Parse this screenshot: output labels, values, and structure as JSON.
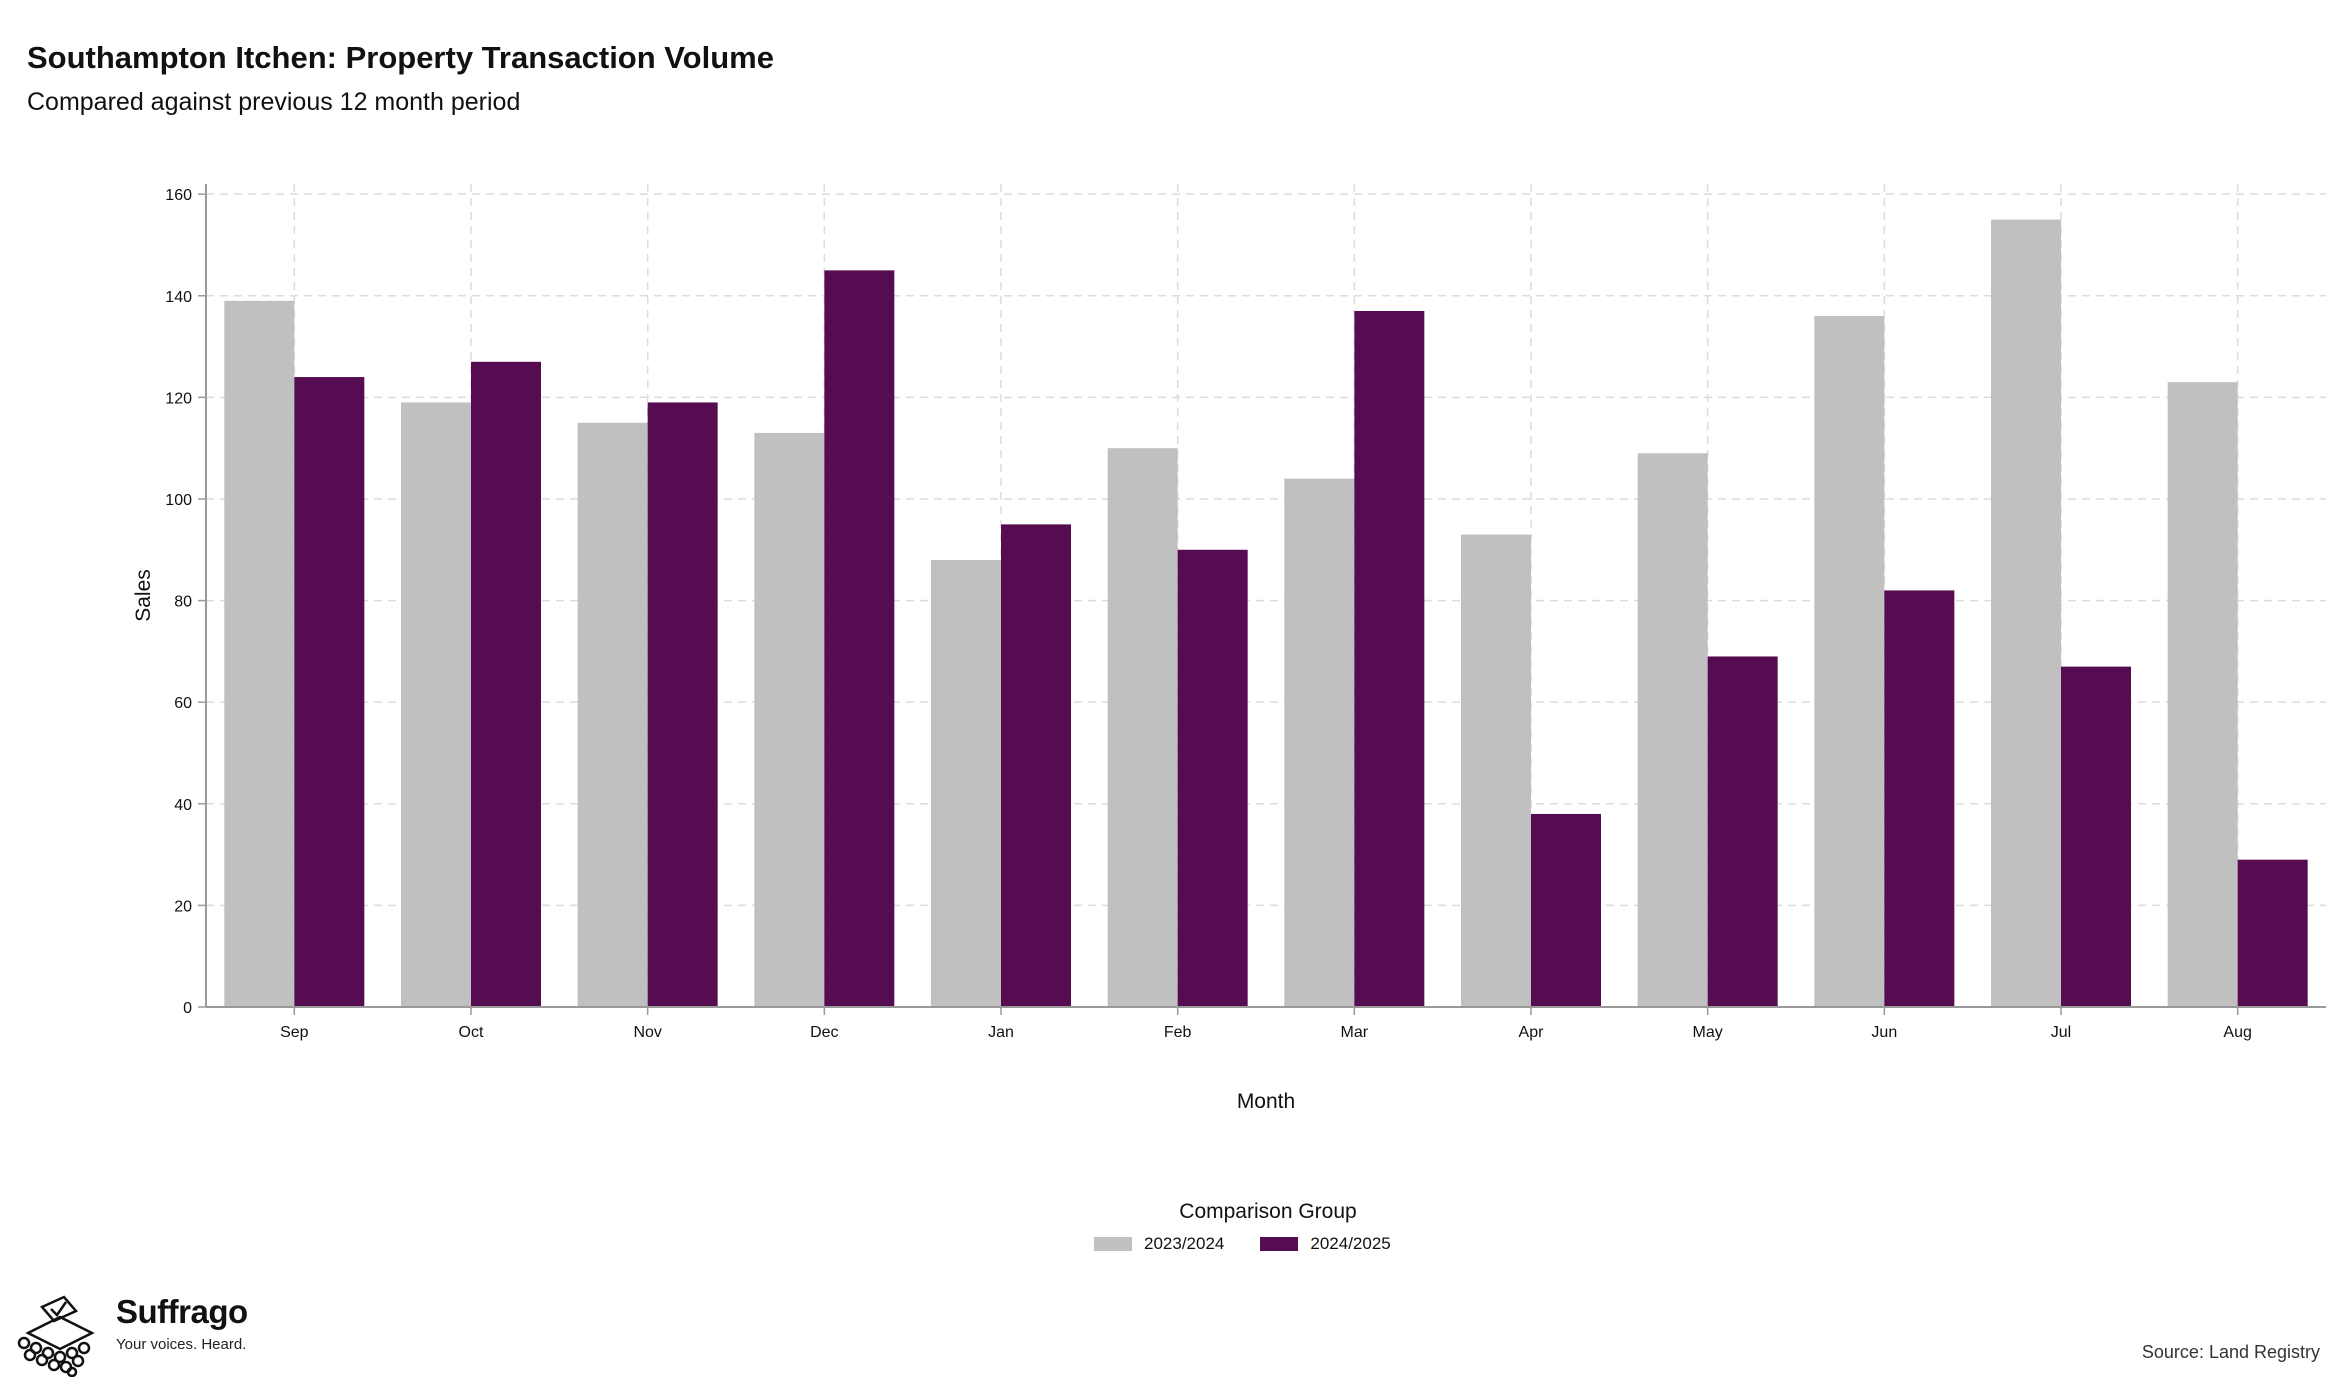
{
  "title": "Southampton Itchen: Property Transaction Volume",
  "subtitle": "Compared against previous 12 month period",
  "source": "Source: Land Registry",
  "logo": {
    "name": "Suffrago",
    "tagline": "Your voices. Heard.",
    "icon": "ballot-box-icon"
  },
  "colors": {
    "series_a": "#c0c0c0",
    "series_b": "#560c51",
    "grid": "#dcdcdc",
    "axis": "#999999"
  },
  "chart_data": {
    "type": "bar",
    "title": "Southampton Itchen: Property Transaction Volume",
    "subtitle": "Compared against previous 12 month period",
    "xlabel": "Month",
    "ylabel": "Sales",
    "ylim": [
      0,
      162
    ],
    "yticks": [
      0,
      20,
      40,
      60,
      80,
      100,
      120,
      140,
      160
    ],
    "grid": true,
    "legend_title": "Comparison Group",
    "legend_position": "bottom",
    "categories": [
      "Sep",
      "Oct",
      "Nov",
      "Dec",
      "Jan",
      "Feb",
      "Mar",
      "Apr",
      "May",
      "Jun",
      "Jul",
      "Aug"
    ],
    "series": [
      {
        "name": "2023/2024",
        "color": "#c0c0c0",
        "values": [
          139,
          119,
          115,
          113,
          88,
          110,
          104,
          93,
          109,
          136,
          155,
          123
        ]
      },
      {
        "name": "2024/2025",
        "color": "#560c51",
        "values": [
          124,
          127,
          119,
          145,
          95,
          90,
          137,
          38,
          69,
          82,
          67,
          29
        ]
      }
    ]
  }
}
